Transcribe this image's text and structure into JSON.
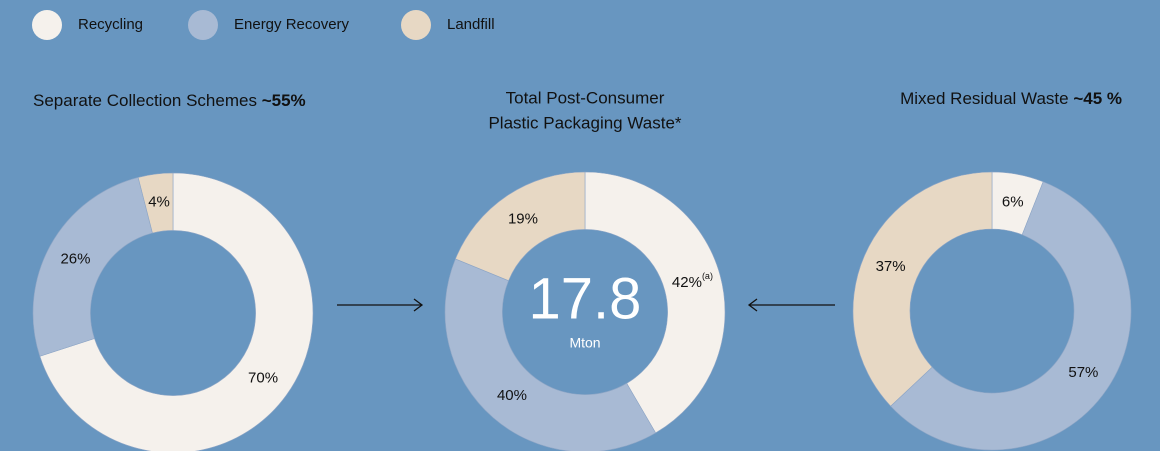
{
  "legend": {
    "categories": [
      "Recycling",
      "Energy Recovery",
      "Landfill"
    ],
    "colors": [
      "#f5f1ec",
      "#a8bad4",
      "#e7d8c4"
    ]
  },
  "chart_data": [
    {
      "type": "pie",
      "title": "Separate Collection Schemes ",
      "title_bold": "~55%",
      "values": [
        70,
        26,
        4
      ],
      "value_labels": [
        "70%",
        "26%",
        "4%"
      ]
    },
    {
      "type": "pie",
      "title": [
        "Total Post-Consumer",
        "Plastic Packaging Waste*"
      ],
      "center_value": "17.8",
      "center_unit": "Mton",
      "values": [
        42,
        40,
        19
      ],
      "value_labels": [
        "42%",
        "40%",
        "19%"
      ],
      "value_label_notes": [
        "(a)",
        null,
        null
      ]
    },
    {
      "type": "pie",
      "title": "Mixed Residual Waste ",
      "title_bold": "~45 %",
      "values": [
        6,
        57,
        37
      ],
      "value_labels": [
        "6%",
        "57%",
        "37%"
      ]
    }
  ]
}
